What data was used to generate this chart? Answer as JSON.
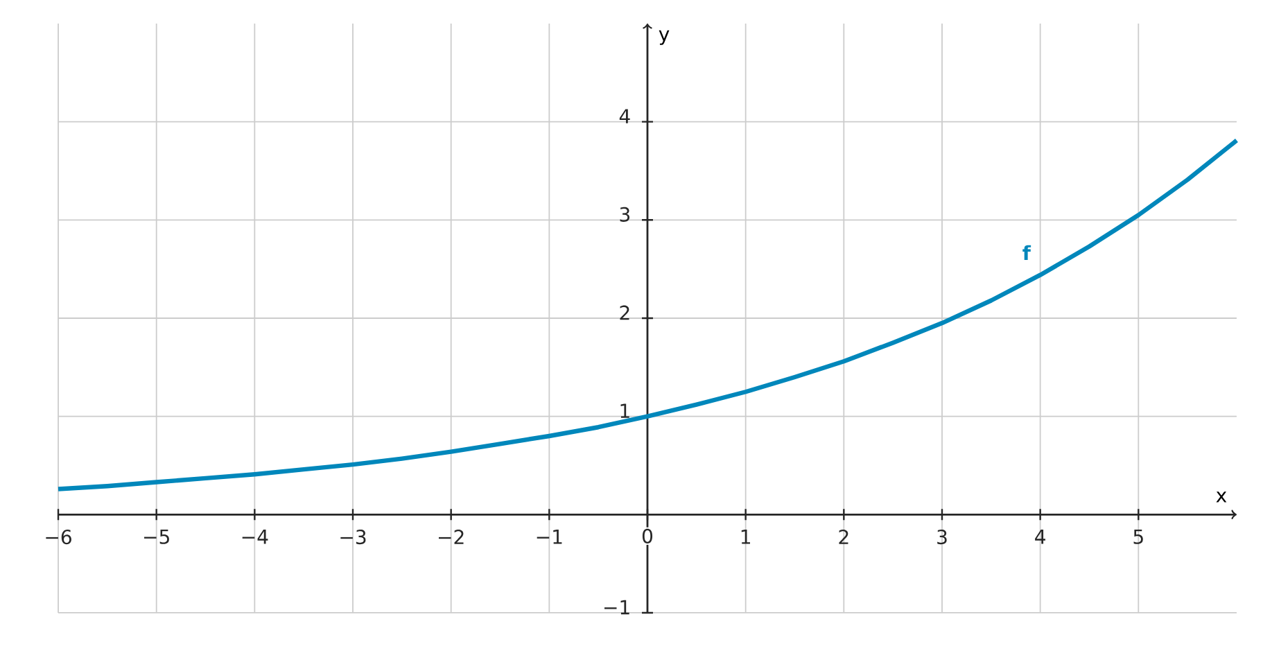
{
  "chart_data": {
    "type": "line",
    "xlabel": "x",
    "ylabel": "y",
    "x": [
      -6,
      -5.5,
      -5,
      -4.5,
      -4,
      -3.5,
      -3,
      -2.5,
      -2,
      -1.5,
      -1,
      -0.5,
      0,
      0.5,
      1,
      1.5,
      2,
      2.5,
      3,
      3.5,
      4,
      4.5,
      5,
      5.5,
      6
    ],
    "series": [
      {
        "name": "f",
        "color": "#0087bb",
        "values": [
          0.26,
          0.29,
          0.33,
          0.37,
          0.41,
          0.46,
          0.51,
          0.57,
          0.64,
          0.72,
          0.8,
          0.89,
          1,
          1.12,
          1.25,
          1.4,
          1.56,
          1.75,
          1.95,
          2.18,
          2.44,
          2.73,
          3.05,
          3.41,
          3.81
        ]
      }
    ],
    "xlim": [
      -6,
      6
    ],
    "ylim": [
      -1,
      5
    ],
    "xticks": [
      {
        "value": -6,
        "label": "−6"
      },
      {
        "value": -5,
        "label": "−5"
      },
      {
        "value": -4,
        "label": "−4"
      },
      {
        "value": -3,
        "label": "−3"
      },
      {
        "value": -2,
        "label": "−2"
      },
      {
        "value": -1,
        "label": "−1"
      },
      0,
      1,
      2,
      3,
      4,
      5
    ],
    "yticks": [
      {
        "value": -1,
        "label": "−1"
      },
      1,
      2,
      3,
      4
    ],
    "grid": true,
    "marker": "none",
    "line_style": "solid"
  }
}
